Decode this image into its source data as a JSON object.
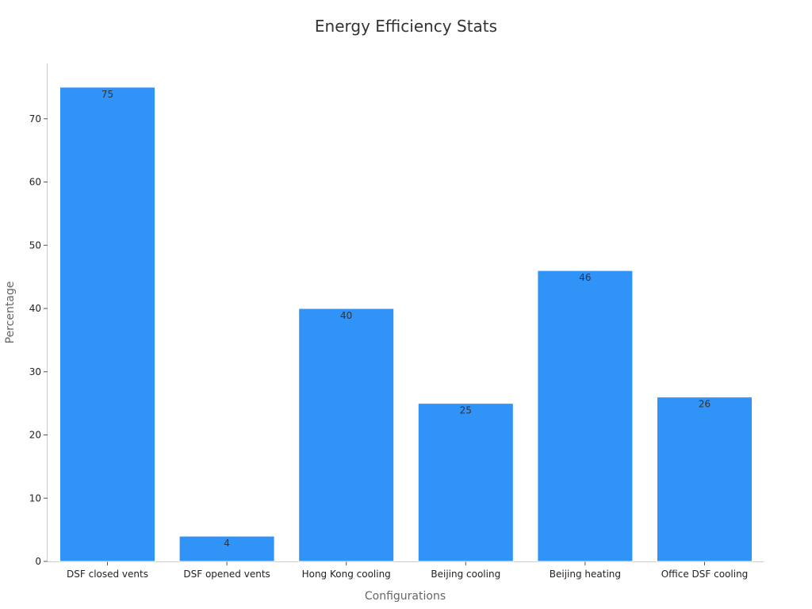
{
  "chart_data": {
    "type": "bar",
    "title": "Energy Efficiency Stats",
    "xlabel": "Configurations",
    "ylabel": "Percentage",
    "categories": [
      "DSF closed vents",
      "DSF opened vents",
      "Hong Kong cooling",
      "Beijing cooling",
      "Beijing heating",
      "Office DSF cooling"
    ],
    "values": [
      75,
      4,
      40,
      25,
      46,
      26
    ],
    "ylim": [
      0,
      78.75
    ],
    "yticks": [
      0,
      10,
      20,
      30,
      40,
      50,
      60,
      70
    ],
    "grid": false,
    "bar_color": "#3093f8"
  }
}
